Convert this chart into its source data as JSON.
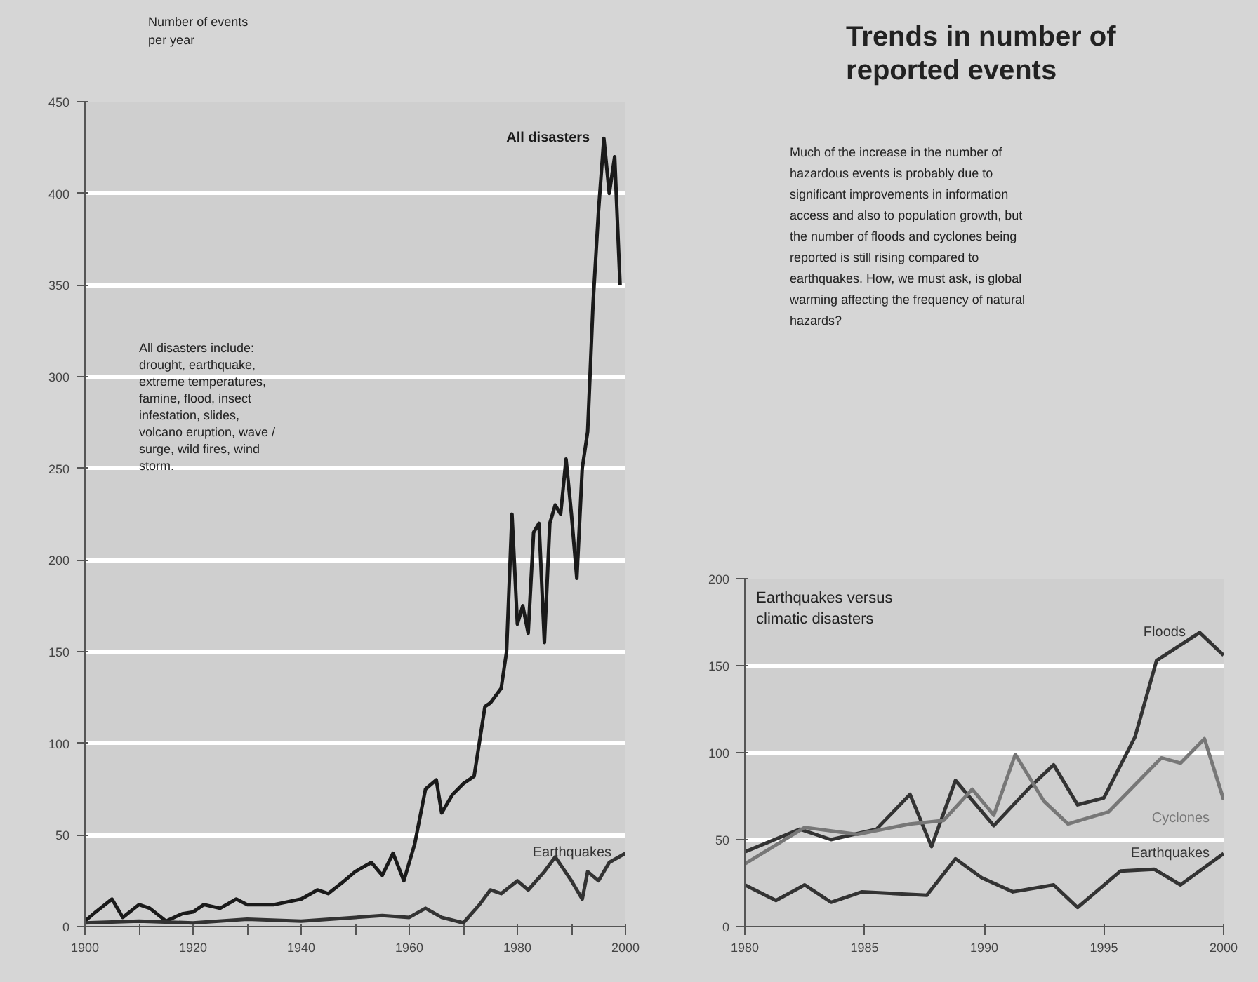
{
  "chart_data": [
    {
      "type": "line",
      "ylabel": "Number of events per year",
      "xlim": [
        1900,
        2000
      ],
      "ylim": [
        0,
        450
      ],
      "xticks": [
        1900,
        {
          "value": 1910,
          "label": null
        },
        1920,
        {
          "value": 1930,
          "label": null
        },
        1940,
        {
          "value": 1950,
          "label": null
        },
        1960,
        {
          "value": 1970,
          "label": null
        },
        1980,
        {
          "value": 1990,
          "label": null
        },
        2000
      ],
      "yticks": [
        0,
        50,
        100,
        150,
        200,
        250,
        300,
        350,
        400,
        450
      ],
      "grid": "y",
      "annotations": [
        "All disasters include: drought, earthquake, extreme temperatures, famine, flood, insect infestation, slides, volcano eruption, wave / surge, wild fires, wind storm."
      ],
      "series": [
        {
          "name": "All disasters",
          "color": "#1a1a1a",
          "x": [
            1900,
            1902,
            1905,
            1907,
            1910,
            1912,
            1915,
            1918,
            1920,
            1922,
            1925,
            1928,
            1930,
            1935,
            1940,
            1943,
            1945,
            1948,
            1950,
            1953,
            1955,
            1957,
            1959,
            1961,
            1963,
            1965,
            1966,
            1968,
            1970,
            1972,
            1974,
            1975,
            1977,
            1978,
            1979,
            1980,
            1981,
            1982,
            1983,
            1984,
            1985,
            1986,
            1987,
            1988,
            1989,
            1990,
            1991,
            1992,
            1993,
            1994,
            1995,
            1996,
            1997,
            1998,
            1999
          ],
          "values": [
            3,
            8,
            15,
            5,
            12,
            10,
            3,
            7,
            8,
            12,
            10,
            15,
            12,
            12,
            15,
            20,
            18,
            25,
            30,
            35,
            28,
            40,
            25,
            45,
            75,
            80,
            62,
            72,
            78,
            82,
            120,
            122,
            130,
            150,
            225,
            165,
            175,
            160,
            215,
            220,
            155,
            220,
            230,
            225,
            255,
            225,
            190,
            250,
            270,
            340,
            390,
            430,
            400,
            420,
            350
          ]
        },
        {
          "name": "Earthquakes",
          "color": "#333333",
          "x": [
            1900,
            1910,
            1920,
            1930,
            1940,
            1950,
            1955,
            1960,
            1963,
            1966,
            1970,
            1973,
            1975,
            1977,
            1980,
            1982,
            1985,
            1987,
            1990,
            1992,
            1993,
            1995,
            1997,
            2000
          ],
          "values": [
            2,
            3,
            2,
            4,
            3,
            5,
            6,
            5,
            10,
            5,
            2,
            12,
            20,
            18,
            25,
            20,
            30,
            38,
            25,
            15,
            30,
            25,
            35,
            40
          ]
        }
      ]
    },
    {
      "type": "line",
      "title": "Trends in number of reported events",
      "subtitle": "Much of the increase in the number of hazardous events is probably due to significant improvements in information access and also to population growth, but the number of floods and cyclones being reported is still rising compared to earthquakes. How, we must ask, is global warming affecting the frequency of natural hazards?",
      "annotations": [
        "Earthquakes versus climatic disasters"
      ],
      "xlim": [
        1980,
        2000
      ],
      "ylim": [
        0,
        200
      ],
      "xticks": [
        1980,
        1985,
        1990,
        1995,
        2000
      ],
      "yticks": [
        0,
        50,
        100,
        150,
        200
      ],
      "grid": "y",
      "series": [
        {
          "name": "Floods",
          "color": "#333333",
          "x": [
            1980,
            1982.3,
            1983.6,
            1985.5,
            1986.9,
            1987.8,
            1988.8,
            1990.4,
            1991.9,
            1992.9,
            1993.9,
            1995,
            1996.3,
            1997.2,
            1999,
            2000
          ],
          "values": [
            43,
            56,
            50,
            56,
            76,
            46,
            84,
            58,
            80,
            93,
            70,
            74,
            109,
            153,
            169,
            156
          ]
        },
        {
          "name": "Cyclones",
          "color": "#777777",
          "x": [
            1980,
            1982.5,
            1984.7,
            1986.9,
            1988.3,
            1989.5,
            1990.4,
            1991.3,
            1992.5,
            1993.5,
            1995.2,
            1997.4,
            1998.2,
            1999.2,
            2000
          ],
          "values": [
            36,
            57,
            53,
            59,
            61,
            79,
            64,
            99,
            72,
            59,
            66,
            97,
            94,
            108,
            73
          ]
        },
        {
          "name": "Earthquakes",
          "color": "#333333",
          "x": [
            1980,
            1981.3,
            1982.5,
            1983.6,
            1984.9,
            1987.6,
            1988.8,
            1989.9,
            1991.2,
            1992.9,
            1993.9,
            1995.7,
            1997.1,
            1998.2,
            2000
          ],
          "values": [
            24,
            15,
            24,
            14,
            20,
            18,
            39,
            28,
            20,
            24,
            11,
            32,
            33,
            24,
            42
          ]
        }
      ]
    }
  ]
}
